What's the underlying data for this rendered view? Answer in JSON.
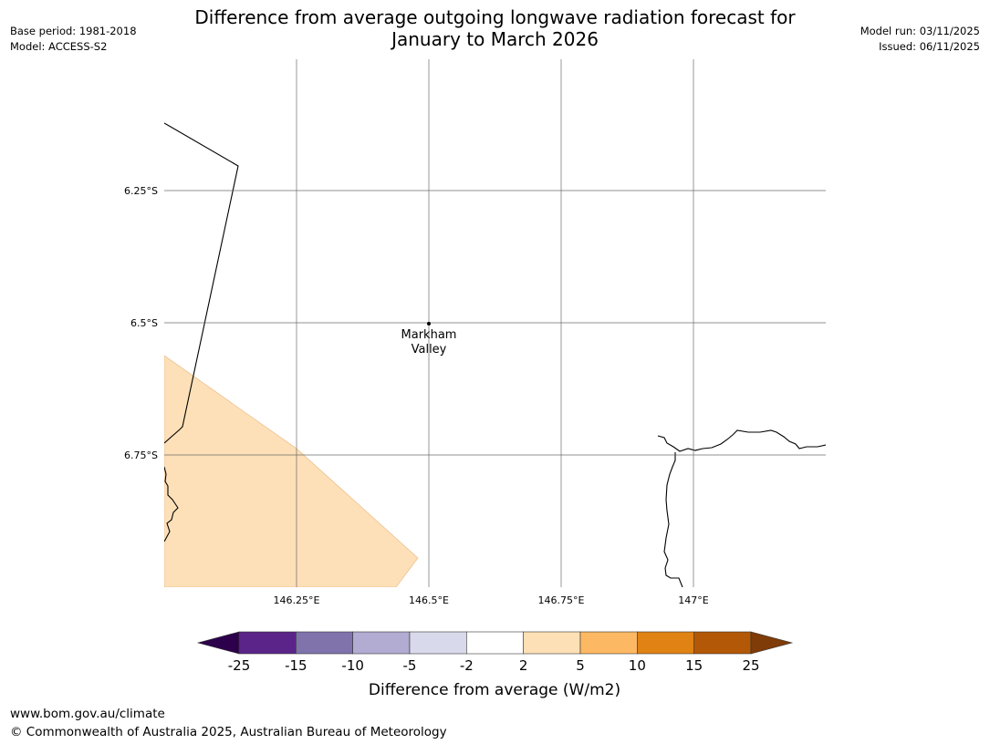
{
  "title": {
    "line1": "Difference from average outgoing longwave radiation forecast for",
    "line2": "January to March 2026"
  },
  "meta_left": {
    "base_period": "Base period: 1981-2018",
    "model": "Model: ACCESS-S2"
  },
  "meta_right": {
    "model_run": "Model run: 03/11/2025",
    "issued": "Issued: 06/11/2025"
  },
  "map": {
    "lat_labels": [
      "6.25°S",
      "6.5°S",
      "6.75°S"
    ],
    "lon_labels": [
      "146.25°E",
      "146.5°E",
      "146.75°E",
      "147°E"
    ],
    "location": {
      "name_line1": "Markham",
      "name_line2": "Valley"
    },
    "shaded_category": "2 to 5",
    "shaded_color": "#fde0b8"
  },
  "colorbar": {
    "title": "Difference from average (W/m2)",
    "labels": [
      "-25",
      "-15",
      "-10",
      "-5",
      "-2",
      "2",
      "5",
      "10",
      "15",
      "25"
    ],
    "colors": [
      "#5a2488",
      "#8073ac",
      "#b2abd2",
      "#d8daeb",
      "#ffffff",
      "#fee0b6",
      "#fdb863",
      "#e08214",
      "#b35806"
    ],
    "extend_low_color": "#2d004b",
    "extend_high_color": "#7f3b08"
  },
  "footer": {
    "url": "www.bom.gov.au/climate",
    "copyright": "© Commonwealth of Australia 2025, Australian Bureau of Meteorology"
  }
}
